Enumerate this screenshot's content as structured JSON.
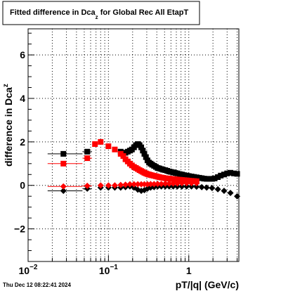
{
  "chart_data": {
    "type": "scatter",
    "title": {
      "prefix": "Fitted difference in Dca",
      "subscript": "z",
      "suffix": "  for Global Rec All EtapT"
    },
    "xlabel": "pT/|q| (GeV/c)",
    "ylabel": {
      "prefix": "difference in Dca",
      "subscript": "z"
    },
    "footer": "Thu Dec 12 08:22:41 2024",
    "x_scale": "log",
    "xlim": [
      0.01,
      4.2
    ],
    "ylim": [
      -3.5,
      7.2
    ],
    "grid": true,
    "x_ticks": [
      {
        "value": 0.01,
        "base": "10",
        "exp": "−2"
      },
      {
        "value": 0.1,
        "base": "10",
        "exp": "−1"
      },
      {
        "value": 1,
        "base": "1",
        "exp": ""
      }
    ],
    "y_ticks": [
      {
        "value": -2,
        "label": "−2"
      },
      {
        "value": 0,
        "label": "0"
      },
      {
        "value": 2,
        "label": "2"
      },
      {
        "value": 4,
        "label": "4"
      },
      {
        "value": 6,
        "label": "6"
      }
    ],
    "series": [
      {
        "color": "#000000",
        "marker": "square",
        "points": [
          {
            "x": 0.0275,
            "y": 1.45,
            "xerr": [
              0.0175,
              0.0475
            ]
          },
          {
            "x": 0.0545,
            "y": 1.55,
            "xerr": [
              0.0475,
              0.0625
            ]
          },
          {
            "x": 0.142,
            "y": 1.55
          },
          {
            "x": 0.153,
            "y": 1.5
          },
          {
            "x": 0.163,
            "y": 1.5
          },
          {
            "x": 0.174,
            "y": 1.55
          },
          {
            "x": 0.185,
            "y": 1.6
          },
          {
            "x": 0.196,
            "y": 1.65
          },
          {
            "x": 0.208,
            "y": 1.75
          },
          {
            "x": 0.22,
            "y": 1.85
          },
          {
            "x": 0.232,
            "y": 1.9
          },
          {
            "x": 0.244,
            "y": 1.85
          },
          {
            "x": 0.256,
            "y": 1.75
          },
          {
            "x": 0.268,
            "y": 1.6
          },
          {
            "x": 0.28,
            "y": 1.45
          },
          {
            "x": 0.293,
            "y": 1.3
          },
          {
            "x": 0.306,
            "y": 1.15
          },
          {
            "x": 0.32,
            "y": 1.05
          },
          {
            "x": 0.335,
            "y": 1.0
          },
          {
            "x": 0.35,
            "y": 0.95
          },
          {
            "x": 0.37,
            "y": 0.9
          },
          {
            "x": 0.39,
            "y": 0.85
          },
          {
            "x": 0.41,
            "y": 0.8
          },
          {
            "x": 0.43,
            "y": 0.78
          },
          {
            "x": 0.455,
            "y": 0.75
          },
          {
            "x": 0.48,
            "y": 0.72
          },
          {
            "x": 0.51,
            "y": 0.7
          },
          {
            "x": 0.54,
            "y": 0.67
          },
          {
            "x": 0.57,
            "y": 0.64
          },
          {
            "x": 0.6,
            "y": 0.62
          },
          {
            "x": 0.64,
            "y": 0.6
          },
          {
            "x": 0.68,
            "y": 0.57
          },
          {
            "x": 0.72,
            "y": 0.55
          },
          {
            "x": 0.77,
            "y": 0.52
          },
          {
            "x": 0.82,
            "y": 0.5
          },
          {
            "x": 0.88,
            "y": 0.47
          },
          {
            "x": 0.94,
            "y": 0.45
          },
          {
            "x": 1.0,
            "y": 0.43
          },
          {
            "x": 1.08,
            "y": 0.41
          },
          {
            "x": 1.16,
            "y": 0.39
          },
          {
            "x": 1.25,
            "y": 0.37
          },
          {
            "x": 1.35,
            "y": 0.35
          },
          {
            "x": 1.45,
            "y": 0.33
          },
          {
            "x": 1.55,
            "y": 0.31
          },
          {
            "x": 1.67,
            "y": 0.3
          },
          {
            "x": 1.8,
            "y": 0.3
          },
          {
            "x": 1.95,
            "y": 0.3
          },
          {
            "x": 2.1,
            "y": 0.32
          },
          {
            "x": 2.3,
            "y": 0.38
          },
          {
            "x": 2.5,
            "y": 0.45
          },
          {
            "x": 2.75,
            "y": 0.5
          },
          {
            "x": 3.0,
            "y": 0.55
          },
          {
            "x": 3.3,
            "y": 0.58
          },
          {
            "x": 3.65,
            "y": 0.55
          },
          {
            "x": 4.0,
            "y": 0.53
          }
        ]
      },
      {
        "color": "#ff0000",
        "marker": "square",
        "points": [
          {
            "x": 0.0275,
            "y": 1.0,
            "xerr": [
              0.0175,
              0.0475
            ]
          },
          {
            "x": 0.0545,
            "y": 1.25,
            "xerr": [
              0.0475,
              0.0625
            ]
          },
          {
            "x": 0.068,
            "y": 1.9
          },
          {
            "x": 0.08,
            "y": 2.0
          },
          {
            "x": 0.1,
            "y": 1.8
          },
          {
            "x": 0.12,
            "y": 1.65
          },
          {
            "x": 0.142,
            "y": 1.45
          },
          {
            "x": 0.153,
            "y": 1.35
          },
          {
            "x": 0.163,
            "y": 1.2
          },
          {
            "x": 0.174,
            "y": 1.1
          },
          {
            "x": 0.185,
            "y": 1.0
          },
          {
            "x": 0.196,
            "y": 0.92
          },
          {
            "x": 0.208,
            "y": 0.85
          },
          {
            "x": 0.22,
            "y": 0.8
          },
          {
            "x": 0.232,
            "y": 0.75
          },
          {
            "x": 0.244,
            "y": 0.7
          },
          {
            "x": 0.256,
            "y": 0.66
          },
          {
            "x": 0.268,
            "y": 0.62
          },
          {
            "x": 0.28,
            "y": 0.58
          },
          {
            "x": 0.293,
            "y": 0.55
          },
          {
            "x": 0.306,
            "y": 0.52
          },
          {
            "x": 0.32,
            "y": 0.5
          },
          {
            "x": 0.335,
            "y": 0.48
          },
          {
            "x": 0.35,
            "y": 0.46
          },
          {
            "x": 0.37,
            "y": 0.44
          },
          {
            "x": 0.39,
            "y": 0.42
          },
          {
            "x": 0.41,
            "y": 0.4
          },
          {
            "x": 0.43,
            "y": 0.38
          },
          {
            "x": 0.455,
            "y": 0.36
          },
          {
            "x": 0.48,
            "y": 0.35
          },
          {
            "x": 0.51,
            "y": 0.33
          },
          {
            "x": 0.54,
            "y": 0.32
          },
          {
            "x": 0.57,
            "y": 0.31
          },
          {
            "x": 0.6,
            "y": 0.3
          },
          {
            "x": 0.64,
            "y": 0.29
          },
          {
            "x": 0.68,
            "y": 0.28
          },
          {
            "x": 0.72,
            "y": 0.27
          },
          {
            "x": 0.77,
            "y": 0.26
          },
          {
            "x": 0.82,
            "y": 0.25
          },
          {
            "x": 0.88,
            "y": 0.24
          },
          {
            "x": 0.94,
            "y": 0.23
          },
          {
            "x": 1.0,
            "y": 0.22
          },
          {
            "x": 1.08,
            "y": 0.21
          },
          {
            "x": 1.16,
            "y": 0.2
          },
          {
            "x": 1.25,
            "y": 0.19
          }
        ]
      },
      {
        "color": "#000000",
        "marker": "diamond",
        "points": [
          {
            "x": 0.0275,
            "y": -0.25,
            "xerr": [
              0.0175,
              0.0475
            ]
          },
          {
            "x": 0.0545,
            "y": -0.15,
            "xerr": [
              0.0475,
              0.0625
            ]
          },
          {
            "x": 0.08,
            "y": -0.1
          },
          {
            "x": 0.1,
            "y": -0.1
          },
          {
            "x": 0.12,
            "y": -0.1
          },
          {
            "x": 0.142,
            "y": -0.1
          },
          {
            "x": 0.163,
            "y": -0.08
          },
          {
            "x": 0.185,
            "y": -0.05
          },
          {
            "x": 0.208,
            "y": -0.1
          },
          {
            "x": 0.232,
            "y": -0.2
          },
          {
            "x": 0.256,
            "y": -0.25
          },
          {
            "x": 0.28,
            "y": -0.22
          },
          {
            "x": 0.306,
            "y": -0.15
          },
          {
            "x": 0.335,
            "y": -0.1
          },
          {
            "x": 0.37,
            "y": -0.08
          },
          {
            "x": 0.41,
            "y": -0.05
          },
          {
            "x": 0.455,
            "y": -0.05
          },
          {
            "x": 0.51,
            "y": -0.05
          },
          {
            "x": 0.57,
            "y": -0.05
          },
          {
            "x": 0.64,
            "y": -0.05
          },
          {
            "x": 0.72,
            "y": -0.05
          },
          {
            "x": 0.82,
            "y": -0.05
          },
          {
            "x": 0.94,
            "y": -0.05
          },
          {
            "x": 1.08,
            "y": -0.05
          },
          {
            "x": 1.25,
            "y": -0.06
          },
          {
            "x": 1.45,
            "y": -0.08
          },
          {
            "x": 1.67,
            "y": -0.1
          },
          {
            "x": 1.95,
            "y": -0.12
          },
          {
            "x": 2.3,
            "y": -0.18
          },
          {
            "x": 2.75,
            "y": -0.25
          },
          {
            "x": 3.3,
            "y": -0.35
          },
          {
            "x": 4.0,
            "y": -0.5
          }
        ]
      },
      {
        "color": "#ff0000",
        "marker": "diamond",
        "points": [
          {
            "x": 0.0275,
            "y": -0.05,
            "xerr": [
              0.0175,
              0.0475
            ]
          },
          {
            "x": 0.0545,
            "y": -0.02,
            "xerr": [
              0.0475,
              0.0625
            ]
          },
          {
            "x": 0.08,
            "y": 0.0
          },
          {
            "x": 0.1,
            "y": 0.0
          },
          {
            "x": 0.12,
            "y": 0.0
          },
          {
            "x": 0.142,
            "y": 0.02
          },
          {
            "x": 0.163,
            "y": 0.03
          },
          {
            "x": 0.185,
            "y": 0.05
          },
          {
            "x": 0.208,
            "y": 0.05
          },
          {
            "x": 0.232,
            "y": 0.05
          },
          {
            "x": 0.256,
            "y": 0.05
          },
          {
            "x": 0.28,
            "y": 0.05
          },
          {
            "x": 0.306,
            "y": 0.05
          },
          {
            "x": 0.335,
            "y": 0.06
          },
          {
            "x": 0.37,
            "y": 0.06
          },
          {
            "x": 0.41,
            "y": 0.07
          },
          {
            "x": 0.455,
            "y": 0.07
          },
          {
            "x": 0.51,
            "y": 0.08
          },
          {
            "x": 0.57,
            "y": 0.08
          },
          {
            "x": 0.64,
            "y": 0.09
          },
          {
            "x": 0.72,
            "y": 0.09
          },
          {
            "x": 0.82,
            "y": 0.1
          },
          {
            "x": 0.94,
            "y": 0.1
          },
          {
            "x": 1.08,
            "y": 0.1
          },
          {
            "x": 1.25,
            "y": 0.1
          }
        ]
      }
    ]
  }
}
